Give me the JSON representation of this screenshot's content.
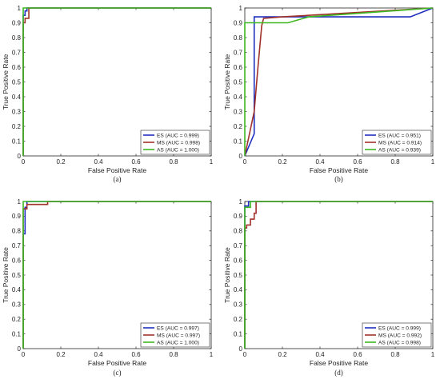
{
  "chart_data": [
    {
      "type": "line",
      "caption": "(a)",
      "xlabel": "False Positive Rate",
      "ylabel": "True Positive Rate",
      "xlim": [
        0,
        1
      ],
      "ylim": [
        0,
        1
      ],
      "xticks": [
        "0",
        "0.2",
        "0.4",
        "0.6",
        "0.8",
        "1"
      ],
      "yticks": [
        "0",
        "0.1",
        "0.2",
        "0.3",
        "0.4",
        "0.5",
        "0.6",
        "0.7",
        "0.8",
        "0.9",
        "1"
      ],
      "legend_position": "bottom-right",
      "grid": false,
      "series": [
        {
          "name": "ES (AUC = 0.999)",
          "color": "#1f2fbf",
          "x": [
            0,
            0,
            0.01,
            0.01,
            0.02,
            0.02,
            1
          ],
          "y": [
            0,
            0.95,
            0.95,
            0.98,
            0.98,
            1,
            1
          ]
        },
        {
          "name": "MS (AUC = 0.998)",
          "color": "#a0322a",
          "x": [
            0,
            0,
            0.01,
            0.01,
            0.03,
            0.03,
            1
          ],
          "y": [
            0,
            0.9,
            0.9,
            0.93,
            0.93,
            1,
            1
          ]
        },
        {
          "name": "AS (AUC = 1.000)",
          "color": "#3cb820",
          "x": [
            0,
            0,
            1
          ],
          "y": [
            0,
            1,
            1
          ]
        }
      ]
    },
    {
      "type": "line",
      "caption": "(b)",
      "xlabel": "False Positive Rate",
      "ylabel": "True Positive Rate",
      "xlim": [
        0,
        1
      ],
      "ylim": [
        0,
        1
      ],
      "xticks": [
        "0",
        "0.2",
        "0.4",
        "0.6",
        "0.8",
        "1"
      ],
      "yticks": [
        "0",
        "0.1",
        "0.2",
        "0.3",
        "0.4",
        "0.5",
        "0.6",
        "0.7",
        "0.8",
        "0.9",
        "1"
      ],
      "legend_position": "bottom-right",
      "grid": false,
      "series": [
        {
          "name": "ES (AUC = 0.951)",
          "color": "#1f2fbf",
          "x": [
            0,
            0.05,
            0.05,
            0.88,
            1
          ],
          "y": [
            0,
            0.15,
            0.94,
            0.94,
            1
          ]
        },
        {
          "name": "MS (AUC = 0.914)",
          "color": "#a0322a",
          "x": [
            0,
            0.05,
            0.07,
            0.09,
            0.1,
            0.2,
            1
          ],
          "y": [
            0,
            0.3,
            0.6,
            0.88,
            0.93,
            0.94,
            1
          ]
        },
        {
          "name": "AS (AUC = 0.939)",
          "color": "#3cb820",
          "x": [
            0,
            0,
            0.23,
            0.34,
            1
          ],
          "y": [
            0,
            0.9,
            0.9,
            0.94,
            1
          ]
        }
      ]
    },
    {
      "type": "line",
      "caption": "(c)",
      "xlabel": "False Positive Rate",
      "ylabel": "True Positive Rate",
      "xlim": [
        0,
        1
      ],
      "ylim": [
        0,
        1
      ],
      "xticks": [
        "0",
        "0.2",
        "0.4",
        "0.6",
        "0.8",
        "1"
      ],
      "yticks": [
        "0",
        "0.1",
        "0.2",
        "0.3",
        "0.4",
        "0.5",
        "0.6",
        "0.7",
        "0.8",
        "0.9",
        "1"
      ],
      "legend_position": "bottom-right",
      "grid": false,
      "series": [
        {
          "name": "ES (AUC = 0.997)",
          "color": "#1f2fbf",
          "x": [
            0,
            0,
            0.01,
            0.01,
            0.02,
            0.02,
            1
          ],
          "y": [
            0,
            0.78,
            0.78,
            0.96,
            0.96,
            1,
            1
          ]
        },
        {
          "name": "MS (AUC = 0.997)",
          "color": "#a0322a",
          "x": [
            0,
            0,
            0.02,
            0.02,
            0.13,
            0.13,
            1
          ],
          "y": [
            0,
            0.95,
            0.95,
            0.98,
            0.98,
            1,
            1
          ]
        },
        {
          "name": "AS (AUC = 1.000)",
          "color": "#3cb820",
          "x": [
            0,
            0,
            1
          ],
          "y": [
            0,
            1,
            1
          ]
        }
      ]
    },
    {
      "type": "line",
      "caption": "(d)",
      "xlabel": "False Positive Rate",
      "ylabel": "True Positive Rate",
      "xlim": [
        0,
        1
      ],
      "ylim": [
        0,
        1
      ],
      "xticks": [
        "0",
        "0.2",
        "0.4",
        "0.6",
        "0.8",
        "1"
      ],
      "yticks": [
        "0",
        "0.1",
        "0.2",
        "0.3",
        "0.4",
        "0.5",
        "0.6",
        "0.7",
        "0.8",
        "0.9",
        "1"
      ],
      "legend_position": "bottom-right",
      "grid": false,
      "series": [
        {
          "name": "ES (AUC = 0.999)",
          "color": "#1f2fbf",
          "x": [
            0,
            0,
            0.02,
            0.02,
            0.06,
            0.06,
            1
          ],
          "y": [
            0,
            0.97,
            0.97,
            1,
            1,
            1,
            1
          ]
        },
        {
          "name": "MS (AUC = 0.992)",
          "color": "#a0322a",
          "x": [
            0,
            0,
            0.01,
            0.01,
            0.03,
            0.03,
            0.05,
            0.05,
            0.06,
            0.06,
            1
          ],
          "y": [
            0,
            0.82,
            0.82,
            0.84,
            0.84,
            0.88,
            0.88,
            0.92,
            0.92,
            1,
            1
          ]
        },
        {
          "name": "AS (AUC = 0.998)",
          "color": "#3cb820",
          "x": [
            0,
            0,
            0.03,
            0.03,
            1
          ],
          "y": [
            0,
            0.96,
            0.96,
            1,
            1
          ]
        }
      ]
    }
  ]
}
